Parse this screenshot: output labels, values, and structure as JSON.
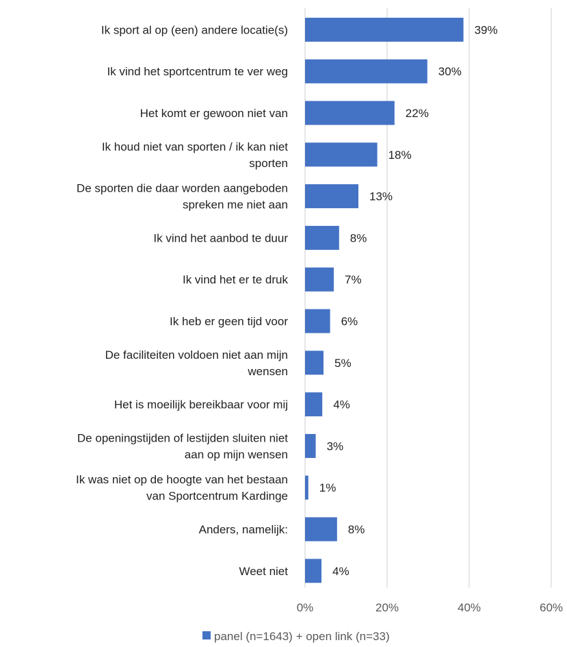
{
  "chart_data": {
    "type": "bar",
    "orientation": "horizontal",
    "categories": [
      "Ik sport al op (een) andere locatie(s)",
      "Ik vind het sportcentrum te ver weg",
      "Het komt er gewoon niet van",
      "Ik houd niet van sporten / ik kan niet sporten",
      "De sporten die daar worden aangeboden spreken me niet aan",
      "Ik vind het aanbod te duur",
      "Ik vind het er te druk",
      "Ik heb er geen tijd voor",
      "De faciliteiten voldoen niet aan mijn wensen",
      "Het is moeilijk bereikbaar voor mij",
      "De openingstijden of lestijden sluiten niet aan op mijn wensen",
      "Ik was niet op de hoogte van het bestaan van Sportcentrum Kardinge",
      "Anders, namelijk:",
      "Weet niet"
    ],
    "category_lines": [
      [
        "Ik sport al op (een) andere locatie(s)"
      ],
      [
        "Ik vind het sportcentrum te ver weg"
      ],
      [
        "Het komt er gewoon niet van"
      ],
      [
        "Ik houd niet van sporten / ik kan niet",
        "sporten"
      ],
      [
        "De sporten die daar worden aangeboden",
        "spreken me niet aan"
      ],
      [
        "Ik vind het aanbod te duur"
      ],
      [
        "Ik vind het er te druk"
      ],
      [
        "Ik heb er geen tijd voor"
      ],
      [
        "De faciliteiten voldoen niet aan mijn",
        "wensen"
      ],
      [
        "Het is moeilijk bereikbaar voor mij"
      ],
      [
        "De openingstijden of lestijden sluiten niet",
        "aan op mijn wensen"
      ],
      [
        "Ik was niet op de hoogte van het bestaan",
        "van Sportcentrum Kardinge"
      ],
      [
        "Anders, namelijk:"
      ],
      [
        "Weet niet"
      ]
    ],
    "series": [
      {
        "name": "panel (n=1643) + open link (n=33)",
        "values": [
          38.6,
          29.8,
          21.8,
          17.6,
          13.0,
          8.3,
          7.0,
          6.1,
          4.5,
          4.2,
          2.6,
          0.8,
          7.8,
          4.0
        ],
        "labels": [
          "39%",
          "30%",
          "22%",
          "18%",
          "13%",
          "8%",
          "7%",
          "6%",
          "5%",
          "4%",
          "3%",
          "1%",
          "8%",
          "4%"
        ],
        "color": "#4472C4"
      }
    ],
    "xlim": [
      0,
      60
    ],
    "xticks": [
      0,
      20,
      40,
      60
    ],
    "xtick_labels": [
      "0%",
      "20%",
      "40%",
      "60%"
    ],
    "grid": true,
    "gridline_color": "#D9D9D9",
    "legend": "bottom",
    "title": "",
    "xlabel": "",
    "ylabel": ""
  }
}
